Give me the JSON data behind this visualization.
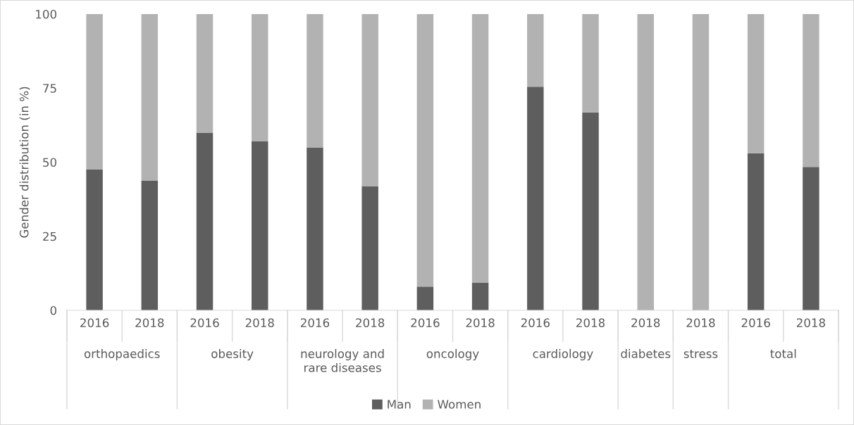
{
  "chart_data": {
    "type": "bar",
    "stacked": true,
    "ylabel": "Gender distribution (in %)",
    "categories": [
      "2016",
      "2018",
      "2016",
      "2018",
      "2016",
      "2018",
      "2016",
      "2018",
      "2016",
      "2018",
      "2018",
      "2018",
      "2016",
      "2018"
    ],
    "annotations": [
      "orthopaedics",
      "obesity",
      "neurology and\nrare diseases",
      "oncology",
      "cardiology",
      "diabetes",
      "stress",
      "total"
    ],
    "series": [
      {
        "name": "Man",
        "color": "#5e5e5e",
        "values": [
          47.5,
          43.8,
          60,
          57,
          55,
          41.9,
          8,
          9.4,
          75.5,
          66.8,
          0,
          0,
          53,
          48.4
        ]
      },
      {
        "name": "Women",
        "color": "#b2b2b2",
        "values": [
          52.5,
          56.2,
          40,
          43,
          45,
          58.1,
          92,
          90.6,
          24.5,
          33.2,
          100,
          100,
          47,
          51.6
        ]
      }
    ],
    "ylim": [
      0,
      100
    ],
    "yticks": [
      0,
      25,
      50,
      75,
      100
    ],
    "grid": false,
    "legend": "bottom"
  }
}
